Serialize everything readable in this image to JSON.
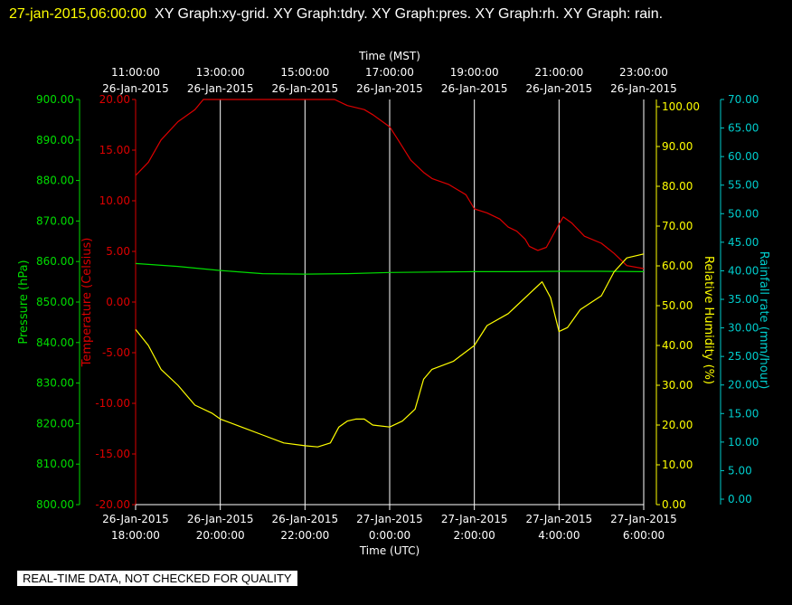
{
  "header": {
    "timestamp": "27-jan-2015,06:00:00",
    "title": "XY Graph:xy-grid.  XY Graph:tdry.  XY Graph:pres.  XY Graph:rh.  XY Graph: rain."
  },
  "footer_note": "REAL-TIME DATA, NOT CHECKED FOR QUALITY",
  "colors": {
    "pressure": "#00dd00",
    "temperature": "#dd0000",
    "humidity": "#ffff00",
    "rainfall": "#00cccc",
    "grid": "#ffffff"
  },
  "chart_data": {
    "type": "line",
    "top_axis": {
      "label": "Time (MST)",
      "ticks": [
        {
          "time": "11:00:00",
          "date": "26-Jan-2015"
        },
        {
          "time": "13:00:00",
          "date": "26-Jan-2015"
        },
        {
          "time": "15:00:00",
          "date": "26-Jan-2015"
        },
        {
          "time": "17:00:00",
          "date": "26-Jan-2015"
        },
        {
          "time": "19:00:00",
          "date": "26-Jan-2015"
        },
        {
          "time": "21:00:00",
          "date": "26-Jan-2015"
        },
        {
          "time": "23:00:00",
          "date": "26-Jan-2015"
        }
      ]
    },
    "bottom_axis": {
      "label": "Time (UTC)",
      "ticks": [
        {
          "date": "26-Jan-2015",
          "time": "18:00:00"
        },
        {
          "date": "26-Jan-2015",
          "time": "20:00:00"
        },
        {
          "date": "26-Jan-2015",
          "time": "22:00:00"
        },
        {
          "date": "27-Jan-2015",
          "time": "0:00:00"
        },
        {
          "date": "27-Jan-2015",
          "time": "2:00:00"
        },
        {
          "date": "27-Jan-2015",
          "time": "4:00:00"
        },
        {
          "date": "27-Jan-2015",
          "time": "6:00:00"
        }
      ]
    },
    "y_axes": {
      "pressure": {
        "label": "Pressure (hPa)",
        "range": [
          800,
          900
        ],
        "ticks": [
          "800.00",
          "810.00",
          "820.00",
          "830.00",
          "840.00",
          "850.00",
          "860.00",
          "870.00",
          "880.00",
          "890.00",
          "900.00"
        ]
      },
      "temperature": {
        "label": "Temperature (Celsius)",
        "range": [
          -20,
          20
        ],
        "ticks": [
          "-20.00",
          "-15.00",
          "-10.00",
          "-5.00",
          "0.00",
          "5.00",
          "10.00",
          "15.00",
          "20.00"
        ]
      },
      "humidity": {
        "label": "Relative Humidity (%)",
        "range": [
          0,
          100
        ],
        "ticks": [
          "0.00",
          "10.00",
          "20.00",
          "30.00",
          "40.00",
          "50.00",
          "60.00",
          "70.00",
          "80.00",
          "90.00",
          "100.00"
        ]
      },
      "rainfall": {
        "label": "Rainfall rate (mm/hour)",
        "range": [
          0,
          70
        ],
        "ticks": [
          "0.00",
          "5.00",
          "10.00",
          "15.00",
          "20.00",
          "25.00",
          "30.00",
          "35.00",
          "40.00",
          "45.00",
          "50.00",
          "55.00",
          "60.00",
          "65.00",
          "70.00"
        ]
      }
    },
    "x_range_hours_utc": [
      18,
      30
    ],
    "series": [
      {
        "name": "tdry",
        "axis": "temperature",
        "x_hours_utc": [
          18.0,
          18.3,
          18.6,
          19.0,
          19.4,
          19.6,
          22.7,
          23.0,
          23.4,
          23.6,
          24.0,
          24.2,
          24.5,
          24.8,
          25.0,
          25.4,
          25.8,
          26.0,
          26.3,
          26.6,
          26.8,
          27.0,
          27.2,
          27.3,
          27.5,
          27.7,
          28.0,
          28.1,
          28.3,
          28.6,
          29.0,
          29.3,
          29.6,
          30.0
        ],
        "values": [
          12.5,
          13.8,
          16.0,
          17.8,
          19.0,
          20.0,
          20.0,
          19.4,
          19.0,
          18.5,
          17.3,
          16.0,
          14.0,
          12.8,
          12.2,
          11.6,
          10.6,
          9.2,
          8.8,
          8.2,
          7.4,
          7.0,
          6.2,
          5.5,
          5.1,
          5.4,
          7.7,
          8.4,
          7.8,
          6.5,
          5.8,
          4.8,
          3.6,
          3.3
        ]
      },
      {
        "name": "pres",
        "axis": "pressure",
        "x_hours_utc": [
          18.0,
          19.0,
          20.0,
          21.0,
          22.0,
          23.0,
          24.0,
          25.0,
          26.0,
          27.0,
          28.0,
          29.0,
          30.0
        ],
        "values": [
          859.5,
          858.8,
          857.8,
          857.0,
          856.9,
          857.0,
          857.3,
          857.4,
          857.5,
          857.5,
          857.6,
          857.6,
          857.5
        ]
      },
      {
        "name": "rh",
        "axis": "humidity",
        "x_hours_utc": [
          18.0,
          18.3,
          18.6,
          19.0,
          19.4,
          19.8,
          20.0,
          20.5,
          21.0,
          21.5,
          22.0,
          22.3,
          22.6,
          22.8,
          23.0,
          23.2,
          23.4,
          23.6,
          24.0,
          24.3,
          24.6,
          24.8,
          25.0,
          25.5,
          26.0,
          26.3,
          26.8,
          27.0,
          27.3,
          27.5,
          27.6,
          27.8,
          28.0,
          28.2,
          28.5,
          29.0,
          29.3,
          29.6,
          30.0
        ],
        "values": [
          44.0,
          40.0,
          34.0,
          30.0,
          25.0,
          23.0,
          21.5,
          19.5,
          17.5,
          15.5,
          14.8,
          14.5,
          15.5,
          19.5,
          21.0,
          21.5,
          21.5,
          20.0,
          19.5,
          21.0,
          24.0,
          31.5,
          34.0,
          36.0,
          40.0,
          45.0,
          48.0,
          50.0,
          53.0,
          55.0,
          56.0,
          52.0,
          43.5,
          44.5,
          49.0,
          52.5,
          58.5,
          62.0,
          63.0
        ]
      },
      {
        "name": "rain",
        "axis": "rainfall",
        "x_hours_utc": [
          18.0,
          30.0
        ],
        "values": [
          0.0,
          0.0
        ]
      }
    ]
  }
}
